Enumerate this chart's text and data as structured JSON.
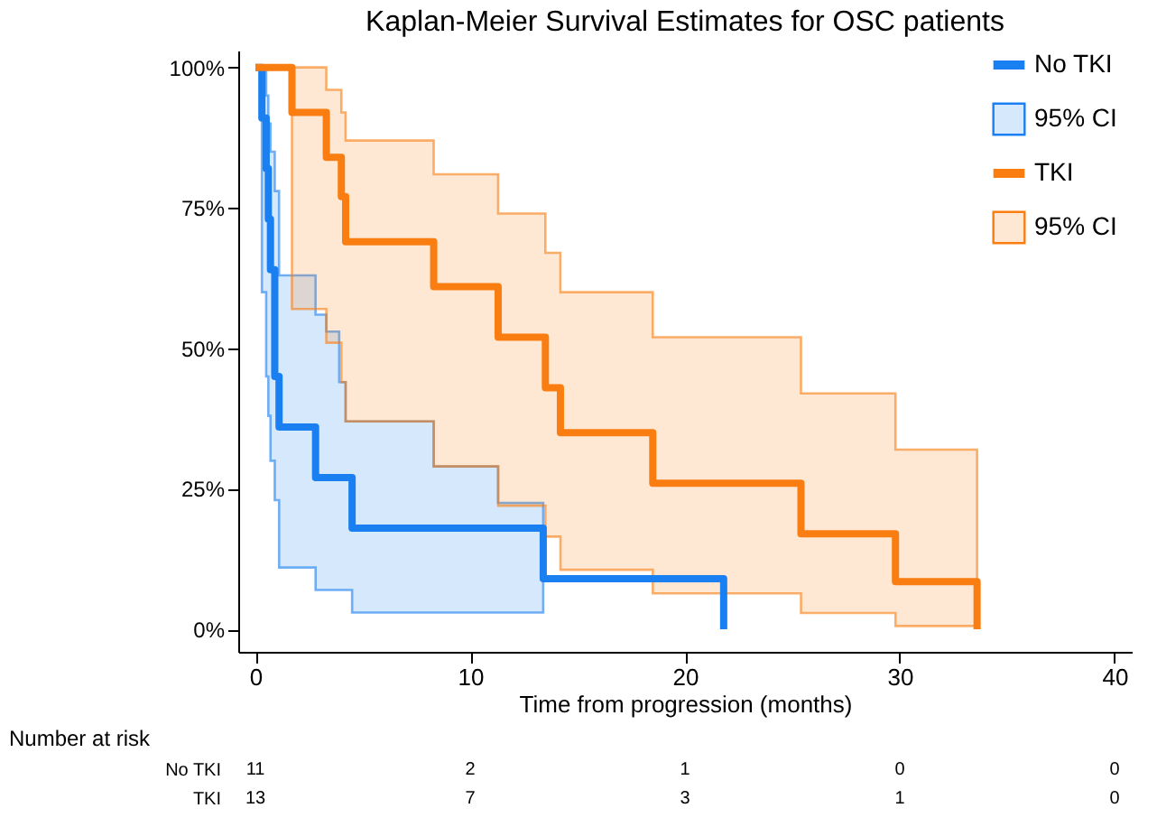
{
  "chart_data": {
    "type": "step",
    "title": "Kaplan-Meier Survival Estimates for OSC patients",
    "xlabel": "Time from progression (months)",
    "xlim": [
      -0.8,
      40.8
    ],
    "xticks": [
      0,
      10,
      20,
      30,
      40
    ],
    "ylim": [
      -4,
      103
    ],
    "yticks": [
      {
        "value": 0,
        "label": "0%"
      },
      {
        "value": 25,
        "label": "25%"
      },
      {
        "value": 50,
        "label": "50%"
      },
      {
        "value": 75,
        "label": "75%"
      },
      {
        "value": 100,
        "label": "100%"
      }
    ],
    "legend": "top right",
    "series": [
      {
        "name": "No TKI",
        "color": "#1a7ff0",
        "x": [
          0,
          0.3,
          0.5,
          0.6,
          0.7,
          0.9,
          1.1,
          2.8,
          3.3,
          3.9,
          4.2,
          4.5,
          8.3,
          11.3,
          13.4,
          21.8
        ],
        "values": [
          100,
          91,
          82,
          73,
          64,
          45,
          36,
          27,
          27,
          27,
          27,
          18,
          18,
          18,
          9,
          0
        ],
        "upper": [
          null,
          100,
          95,
          90,
          85,
          78,
          63,
          56,
          53,
          44,
          37,
          37,
          29,
          22.5,
          22.5,
          null
        ],
        "lower": [
          null,
          60,
          45,
          38,
          30,
          23,
          11,
          7,
          7,
          7,
          7,
          3,
          3,
          3,
          3,
          null
        ]
      },
      {
        "name": "TKI",
        "color": "#f97d10",
        "x": [
          0,
          1.7,
          3.3,
          4.0,
          4.2,
          8.3,
          11.3,
          13.5,
          14.2,
          18.5,
          25.4,
          29.8,
          33.6
        ],
        "values": [
          100,
          92,
          84,
          77,
          69,
          61,
          52,
          43,
          35,
          26,
          17,
          8.5,
          0
        ],
        "upper": [
          null,
          100,
          96,
          92,
          87,
          81,
          74,
          67,
          60,
          52,
          42,
          32,
          32
        ],
        "lower": [
          null,
          57,
          51,
          44,
          37,
          29,
          22,
          16.5,
          10.6,
          6.4,
          2.9,
          0.6,
          0.6
        ]
      }
    ],
    "annotations": [
      "95% CI",
      "95% CI",
      "Number at risk",
      "No TKI",
      "11",
      "2",
      "1",
      "0",
      "0",
      "TKI",
      "13",
      "7",
      "3",
      "1",
      "0"
    ]
  }
}
